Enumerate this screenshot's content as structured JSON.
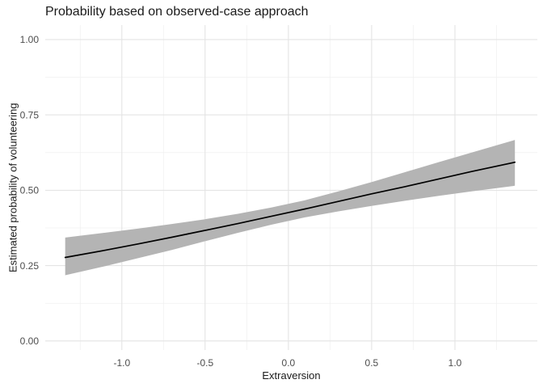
{
  "chart_data": {
    "type": "line",
    "title": "Probability based on observed-case approach",
    "xlabel": "Extraversion",
    "ylabel": "Estimated probability of volunteering",
    "xlim": [
      -1.46,
      1.495
    ],
    "ylim": [
      -0.03,
      1.048
    ],
    "grid": "major and minor, light gray, no axis lines, no ticks (ggplot minimal theme)",
    "legend": "none",
    "x_axis": {
      "tick_values": [
        -1.0,
        -0.5,
        0.0,
        0.5,
        1.0
      ],
      "tick_labels": [
        "-1.0",
        "-0.5",
        "0.0",
        "0.5",
        "1.0"
      ],
      "minor_values": [
        -1.25,
        -0.75,
        -0.25,
        0.25,
        0.75,
        1.25
      ]
    },
    "y_axis": {
      "tick_values": [
        0.0,
        0.25,
        0.5,
        0.75,
        1.0
      ],
      "tick_labels": [
        "0.00",
        "0.25",
        "0.50",
        "0.75",
        "1.00"
      ],
      "minor_values": [
        0.125,
        0.375,
        0.625,
        0.875
      ]
    },
    "x": [
      -1.34,
      -1.1,
      -0.9,
      -0.7,
      -0.5,
      -0.3,
      -0.1,
      0.1,
      0.3,
      0.5,
      0.7,
      0.9,
      1.1,
      1.36
    ],
    "series": [
      {
        "name": "fitted probability",
        "type": "line",
        "color": "#000000",
        "values": [
          0.277,
          0.301,
          0.322,
          0.344,
          0.367,
          0.39,
          0.414,
          0.438,
          0.463,
          0.488,
          0.512,
          0.537,
          0.562,
          0.593
        ]
      },
      {
        "name": "confidence ribbon",
        "type": "area",
        "color": "#b4b4b4",
        "lower": [
          0.218,
          0.248,
          0.275,
          0.302,
          0.331,
          0.359,
          0.386,
          0.41,
          0.43,
          0.448,
          0.465,
          0.481,
          0.496,
          0.515
        ],
        "upper": [
          0.343,
          0.359,
          0.373,
          0.388,
          0.404,
          0.422,
          0.443,
          0.467,
          0.496,
          0.527,
          0.56,
          0.593,
          0.625,
          0.667
        ]
      }
    ],
    "colors": {
      "line": "#000000",
      "ribbon": "#b4b4b4",
      "grid_major": "#e4e4e4",
      "grid_minor": "#f0f0f0",
      "tick_text": "#4d4d4d",
      "title_text": "#1a1a1a",
      "background": "#ffffff"
    }
  }
}
